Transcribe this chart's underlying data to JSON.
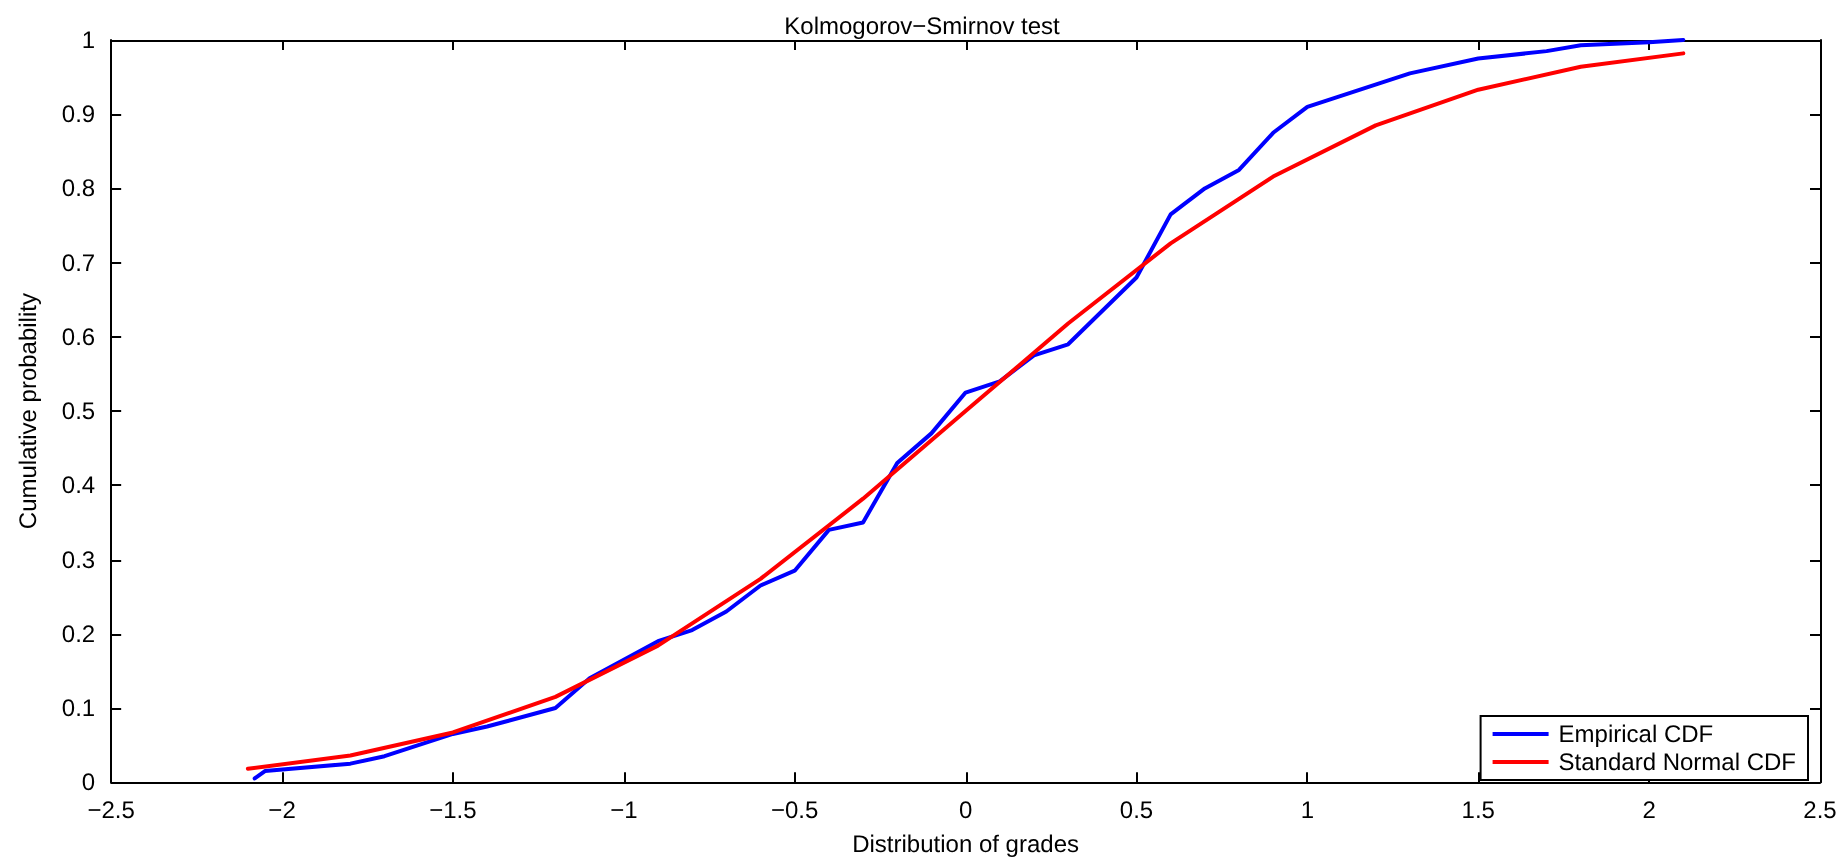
{
  "chart_data": {
    "type": "line",
    "title": "Kolmogorov−Smirnov test",
    "xlabel": "Distribution of grades",
    "ylabel": "Cumulative probability",
    "series": [
      {
        "name": "Empirical CDF",
        "color": "#0000ff",
        "x": [
          -2.08,
          -2.05,
          -1.8,
          -1.7,
          -1.5,
          -1.4,
          -1.2,
          -1.1,
          -0.9,
          -0.8,
          -0.7,
          -0.6,
          -0.5,
          -0.4,
          -0.3,
          -0.2,
          -0.1,
          0,
          0.1,
          0.2,
          0.3,
          0.5,
          0.6,
          0.7,
          0.8,
          0.9,
          1.0,
          1.3,
          1.5,
          1.7,
          1.8,
          2.0,
          2.1
        ],
        "values": [
          0.005,
          0.015,
          0.025,
          0.035,
          0.065,
          0.075,
          0.1,
          0.14,
          0.19,
          0.205,
          0.23,
          0.265,
          0.285,
          0.34,
          0.35,
          0.43,
          0.47,
          0.525,
          0.54,
          0.575,
          0.59,
          0.68,
          0.765,
          0.8,
          0.825,
          0.875,
          0.91,
          0.955,
          0.975,
          0.985,
          0.993,
          0.997,
          1.0
        ]
      },
      {
        "name": "Standard Normal CDF",
        "color": "#ff0000",
        "x": [
          -2.1,
          -1.8,
          -1.5,
          -1.2,
          -0.9,
          -0.6,
          -0.3,
          0,
          0.3,
          0.6,
          0.9,
          1.2,
          1.5,
          1.8,
          2.1
        ],
        "values": [
          0.018,
          0.036,
          0.067,
          0.115,
          0.184,
          0.274,
          0.382,
          0.5,
          0.618,
          0.726,
          0.816,
          0.885,
          0.933,
          0.964,
          0.982
        ]
      }
    ],
    "xlim": [
      -2.5,
      2.5
    ],
    "xticks": [
      -2.5,
      -2,
      -1.5,
      -1,
      -0.5,
      0,
      0.5,
      1,
      1.5,
      2,
      2.5
    ],
    "ylim": [
      0,
      1
    ],
    "yticks": [
      0,
      0.1,
      0.2,
      0.3,
      0.4,
      0.5,
      0.6,
      0.7,
      0.8,
      0.9,
      1
    ],
    "grid": false,
    "legend": "bottom right",
    "marker": "none",
    "line_style": "solid"
  }
}
